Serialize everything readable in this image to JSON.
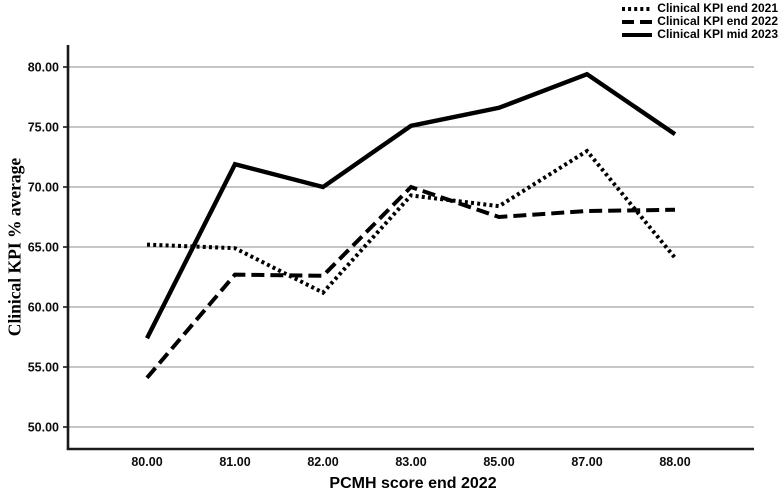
{
  "chart_data": {
    "type": "line",
    "title": "",
    "xlabel": "PCMH score end 2022",
    "ylabel": "Clinical KPI % average",
    "categories": [
      "80.00",
      "81.00",
      "82.00",
      "83.00",
      "85.00",
      "87.00",
      "88.00"
    ],
    "series": [
      {
        "name": "Clinical KPI end 2021",
        "line_style": "dotted",
        "color": "#000000",
        "values": [
          65.2,
          64.9,
          61.2,
          69.3,
          68.4,
          73.0,
          64.1
        ]
      },
      {
        "name": "Clinical KPI end 2022",
        "line_style": "dashed",
        "color": "#000000",
        "values": [
          54.1,
          62.7,
          62.6,
          70.0,
          67.5,
          68.0,
          68.1
        ]
      },
      {
        "name": "Clinical KPI mid 2023",
        "line_style": "solid",
        "color": "#000000",
        "values": [
          57.4,
          71.9,
          70.0,
          75.1,
          76.6,
          79.4,
          74.4
        ]
      }
    ],
    "yticks": [
      80,
      75,
      70,
      65,
      60,
      55,
      50
    ],
    "ytick_labels": [
      "80.00",
      "75.00",
      "70.00",
      "65.00",
      "60.00",
      "55.00",
      "50.00"
    ],
    "ylim": [
      48.2,
      81.8
    ],
    "grid": "horizontal",
    "legend_position": "top-right",
    "colors": {
      "line": "#000000",
      "gridline": "#8c8c8c",
      "axis": "#1a1a1a",
      "background": "#ffffff"
    }
  }
}
